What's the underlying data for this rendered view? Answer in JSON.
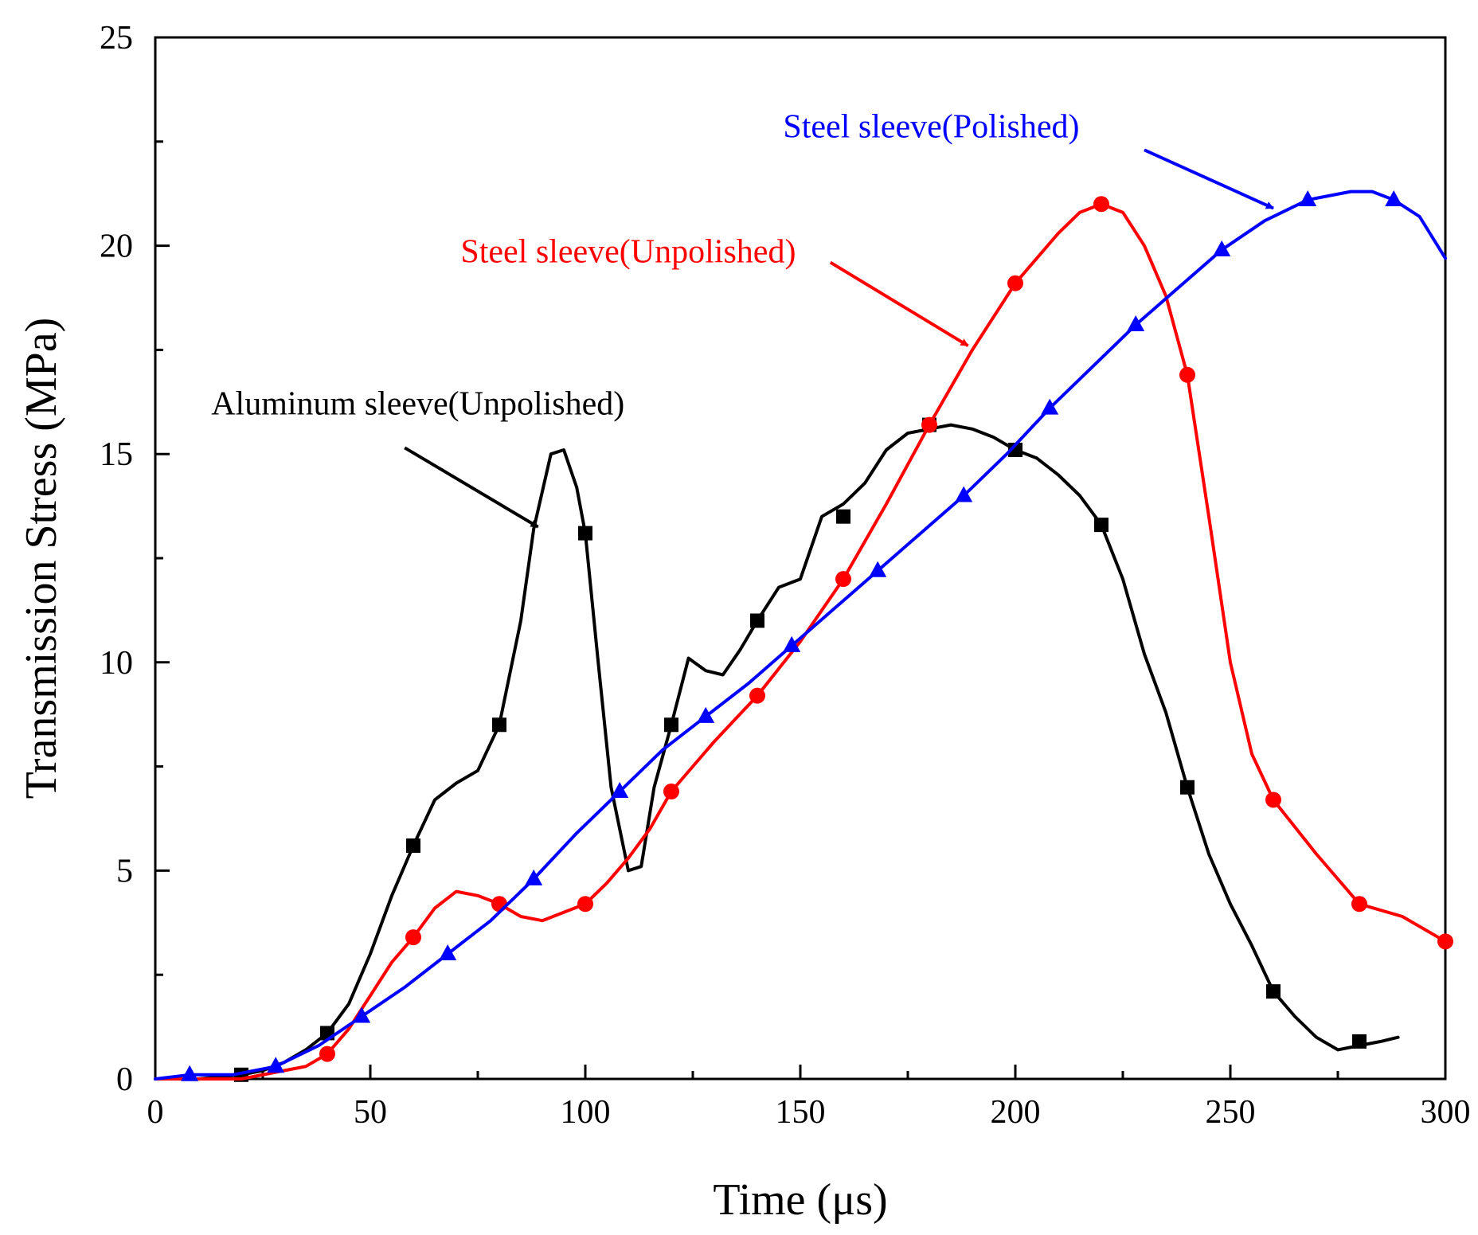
{
  "chart_data": {
    "type": "line",
    "title": "",
    "xlabel": "Time (μs)",
    "ylabel": "Transmission Stress (MPa)",
    "xlim": [
      0,
      300
    ],
    "ylim": [
      0,
      25
    ],
    "xticks": [
      0,
      50,
      100,
      150,
      200,
      250,
      300
    ],
    "yticks": [
      0,
      5,
      10,
      15,
      20,
      25
    ],
    "x_tick_labels": [
      "0",
      "50",
      "100",
      "150",
      "200",
      "250",
      "300"
    ],
    "y_tick_labels": [
      "0",
      "5",
      "10",
      "15",
      "20",
      "25"
    ],
    "grid": false,
    "series": [
      {
        "name": "Aluminum sleeve(Unpolished)",
        "color": "#000000",
        "marker": "square",
        "x": [
          0,
          10,
          20,
          25,
          30,
          35,
          40,
          45,
          50,
          55,
          60,
          65,
          70,
          75,
          80,
          85,
          88,
          92,
          95,
          98,
          100,
          103,
          106,
          110,
          113,
          116,
          120,
          124,
          128,
          132,
          136,
          140,
          145,
          150,
          155,
          160,
          165,
          170,
          175,
          180,
          185,
          190,
          195,
          200,
          205,
          210,
          215,
          220,
          225,
          230,
          235,
          240,
          245,
          250,
          255,
          260,
          265,
          270,
          275,
          280,
          285,
          289
        ],
        "y": [
          0.0,
          0.0,
          0.1,
          0.2,
          0.4,
          0.7,
          1.1,
          1.8,
          3.0,
          4.4,
          5.6,
          6.7,
          7.1,
          7.4,
          8.5,
          11.0,
          13.2,
          15.0,
          15.1,
          14.2,
          13.1,
          10.0,
          7.0,
          5.0,
          5.1,
          7.0,
          8.5,
          10.1,
          9.8,
          9.7,
          10.3,
          11.0,
          11.8,
          12.0,
          13.5,
          13.8,
          14.3,
          15.1,
          15.5,
          15.6,
          15.7,
          15.6,
          15.4,
          15.1,
          14.9,
          14.5,
          14.0,
          13.3,
          12.0,
          10.2,
          8.8,
          7.0,
          5.4,
          4.2,
          3.2,
          2.1,
          1.5,
          1.0,
          0.7,
          0.8,
          0.9,
          1.0
        ],
        "marker_x": [
          20,
          40,
          60,
          80,
          100,
          120,
          140,
          160,
          180,
          200,
          220,
          240,
          260,
          280
        ],
        "marker_y": [
          0.1,
          1.1,
          5.6,
          8.5,
          13.1,
          8.5,
          11.0,
          13.5,
          15.7,
          15.1,
          13.3,
          7.0,
          2.1,
          0.9
        ]
      },
      {
        "name": "Steel sleeve(Unpolished)",
        "color": "#ff0000",
        "marker": "circle",
        "x": [
          0,
          10,
          20,
          30,
          35,
          40,
          45,
          50,
          55,
          60,
          65,
          70,
          75,
          80,
          85,
          90,
          95,
          100,
          105,
          110,
          115,
          120,
          130,
          140,
          150,
          160,
          170,
          180,
          190,
          200,
          210,
          215,
          220,
          225,
          230,
          235,
          240,
          245,
          250,
          255,
          260,
          270,
          280,
          290,
          300
        ],
        "y": [
          0.0,
          0.0,
          0.0,
          0.2,
          0.3,
          0.6,
          1.2,
          2.0,
          2.8,
          3.4,
          4.1,
          4.5,
          4.4,
          4.2,
          3.9,
          3.8,
          4.0,
          4.2,
          4.7,
          5.3,
          6.0,
          6.9,
          8.1,
          9.2,
          10.5,
          12.0,
          13.8,
          15.7,
          17.5,
          19.1,
          20.3,
          20.8,
          21.0,
          20.8,
          20.0,
          18.8,
          16.9,
          13.5,
          10.0,
          7.8,
          6.7,
          5.4,
          4.2,
          3.9,
          3.3
        ],
        "marker_x": [
          40,
          60,
          80,
          100,
          120,
          140,
          160,
          180,
          200,
          220,
          240,
          260,
          280,
          300
        ],
        "marker_y": [
          0.6,
          3.4,
          4.2,
          4.2,
          6.9,
          9.2,
          12.0,
          15.7,
          19.1,
          21.0,
          16.9,
          6.7,
          4.2,
          3.3
        ]
      },
      {
        "name": "Steel sleeve(Polished)",
        "color": "#0000ff",
        "marker": "triangle",
        "x": [
          0,
          8,
          18,
          28,
          38,
          48,
          58,
          68,
          78,
          88,
          98,
          108,
          118,
          128,
          138,
          148,
          158,
          168,
          178,
          188,
          198,
          208,
          218,
          228,
          238,
          248,
          258,
          268,
          278,
          283,
          288,
          294,
          300
        ],
        "y": [
          0.0,
          0.1,
          0.1,
          0.3,
          0.8,
          1.5,
          2.2,
          3.0,
          3.8,
          4.8,
          5.9,
          6.9,
          7.9,
          8.7,
          9.5,
          10.4,
          11.3,
          12.2,
          13.1,
          14.0,
          15.0,
          16.1,
          17.1,
          18.1,
          19.0,
          19.9,
          20.6,
          21.1,
          21.3,
          21.3,
          21.1,
          20.7,
          19.7
        ],
        "marker_x": [
          8,
          28,
          48,
          68,
          88,
          108,
          128,
          148,
          168,
          188,
          208,
          228,
          248,
          268,
          288
        ],
        "marker_y": [
          0.1,
          0.3,
          1.5,
          3.0,
          4.8,
          6.9,
          8.7,
          10.4,
          12.2,
          14.0,
          16.1,
          18.1,
          19.9,
          21.1,
          21.1
        ]
      }
    ],
    "annotations": [
      {
        "text": "Aluminum sleeve(Unpolished)",
        "color": "#000000",
        "text_x": 13,
        "text_y": 15.95,
        "arrow_from": [
          58,
          15.15
        ],
        "arrow_to": [
          89,
          13.25
        ]
      },
      {
        "text": "Steel sleeve(Unpolished)",
        "color": "#ff0000",
        "text_x": 71,
        "text_y": 19.6,
        "arrow_from": [
          157,
          19.6
        ],
        "arrow_to": [
          189,
          17.6
        ]
      },
      {
        "text": "Steel sleeve(Polished)",
        "color": "#0000ff",
        "text_x": 146,
        "text_y": 22.6,
        "arrow_from": [
          230,
          22.3
        ],
        "arrow_to": [
          260,
          20.9
        ]
      }
    ]
  }
}
